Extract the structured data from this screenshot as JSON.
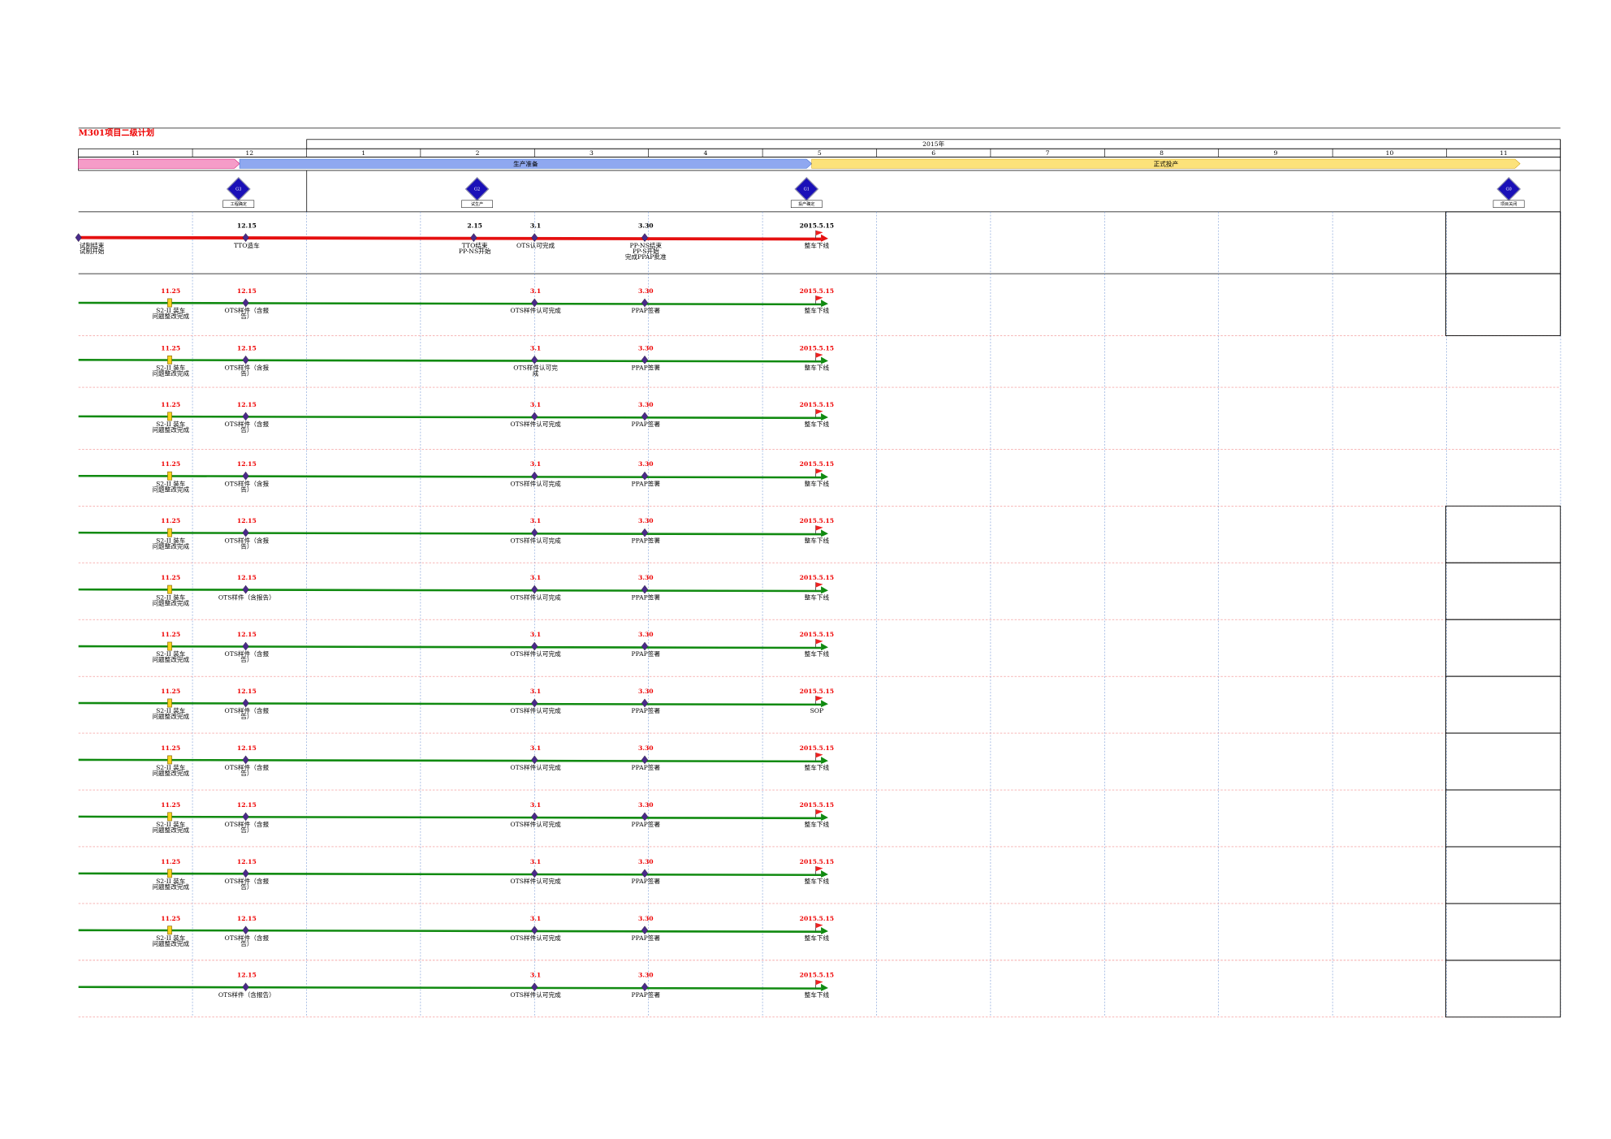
{
  "header": {
    "title": "M301项目二级计划",
    "year": "2015年",
    "months": [
      "11",
      "12",
      "1",
      "2",
      "3",
      "4",
      "5",
      "6",
      "7",
      "8",
      "9",
      "10",
      "11"
    ],
    "phases": [
      "生产准备",
      "正式投产"
    ],
    "gates": [
      {
        "name": "G3",
        "caption": "工程确定"
      },
      {
        "name": "G2",
        "caption": "试生产"
      },
      {
        "name": "G1",
        "caption": "投产确定"
      },
      {
        "name": "G0",
        "caption": "项目关闭"
      }
    ]
  },
  "main_row": {
    "milestones": [
      {
        "date": null,
        "label": [
          "试制结束",
          "试制开始"
        ],
        "marker": "diamond"
      },
      {
        "date": "12.15",
        "label": [
          "TTO造车"
        ],
        "marker": "diamond"
      },
      {
        "date": "2.15",
        "label": [
          "TTO结束",
          "PP-NS开始"
        ],
        "marker": "diamond"
      },
      {
        "date": "3.1",
        "label": [
          "OTS认可完成"
        ],
        "marker": "diamond"
      },
      {
        "date": "3.30",
        "label": [
          "PP-NS结束",
          "PP-S开始",
          "完成PPAP批准"
        ],
        "marker": "diamond"
      },
      {
        "date": "2015.5.15",
        "label": [
          "整车下线"
        ],
        "marker": "flag"
      }
    ]
  },
  "rows": [
    {
      "milestones": [
        {
          "date": "11.25",
          "label": [
            "S2-II 装车",
            "问题整改完成"
          ],
          "marker": "bar"
        },
        {
          "date": "12.15",
          "label": [
            "OTS样件（含报",
            "告）"
          ],
          "marker": "diamond"
        },
        {
          "date": "3.1",
          "label": [
            "OTS样件认可完成"
          ],
          "marker": "diamond"
        },
        {
          "date": "3.30",
          "label": [
            "PPAP签署"
          ],
          "marker": "diamond"
        },
        {
          "date": "2015.5.15",
          "label": [
            "整车下线"
          ],
          "marker": "flag"
        }
      ]
    },
    {
      "milestones": [
        {
          "date": "11.25",
          "label": [
            "S2-II 装车",
            "问题整改完成"
          ],
          "marker": "bar"
        },
        {
          "date": "12.15",
          "label": [
            "OTS样件（含报",
            "告）"
          ],
          "marker": "diamond"
        },
        {
          "date": "3.1",
          "label": [
            "OTS样件认可完",
            "成"
          ],
          "marker": "diamond"
        },
        {
          "date": "3.30",
          "label": [
            "PPAP签署"
          ],
          "marker": "diamond"
        },
        {
          "date": "2015.5.15",
          "label": [
            "整车下线"
          ],
          "marker": "flag"
        }
      ]
    },
    {
      "milestones": [
        {
          "date": "11.25",
          "label": [
            "S2-II 装车",
            "问题整改完成"
          ],
          "marker": "bar"
        },
        {
          "date": "12.15",
          "label": [
            "OTS样件（含报",
            "告）"
          ],
          "marker": "diamond"
        },
        {
          "date": "3.1",
          "label": [
            "OTS样件认可完成"
          ],
          "marker": "diamond"
        },
        {
          "date": "3.30",
          "label": [
            "PPAP签署"
          ],
          "marker": "diamond"
        },
        {
          "date": "2015.5.15",
          "label": [
            "整车下线"
          ],
          "marker": "flag"
        }
      ]
    },
    {
      "milestones": [
        {
          "date": "11.25",
          "label": [
            "S2-II 装车",
            "问题整改完成"
          ],
          "marker": "bar"
        },
        {
          "date": "12.15",
          "label": [
            "OTS样件（含报",
            "告）"
          ],
          "marker": "diamond"
        },
        {
          "date": "3.1",
          "label": [
            "OTS样件认可完成"
          ],
          "marker": "diamond"
        },
        {
          "date": "3.30",
          "label": [
            "PPAP签署"
          ],
          "marker": "diamond"
        },
        {
          "date": "2015.5.15",
          "label": [
            "整车下线"
          ],
          "marker": "flag"
        }
      ]
    },
    {
      "milestones": [
        {
          "date": "11.25",
          "label": [
            "S2-II 装车",
            "问题整改完成"
          ],
          "marker": "bar"
        },
        {
          "date": "12.15",
          "label": [
            "OTS样件（含报",
            "告）"
          ],
          "marker": "diamond"
        },
        {
          "date": "3.1",
          "label": [
            "OTS样件认可完成"
          ],
          "marker": "diamond"
        },
        {
          "date": "3.30",
          "label": [
            "PPAP签署"
          ],
          "marker": "diamond"
        },
        {
          "date": "2015.5.15",
          "label": [
            "整车下线"
          ],
          "marker": "flag"
        }
      ]
    },
    {
      "milestones": [
        {
          "date": "11.25",
          "label": [
            "S2-II 装车",
            "问题整改完成"
          ],
          "marker": "bar"
        },
        {
          "date": "12.15",
          "label": [
            "OTS样件（含报告）"
          ],
          "marker": "diamond"
        },
        {
          "date": "3.1",
          "label": [
            "OTS样件认可完成"
          ],
          "marker": "diamond"
        },
        {
          "date": "3.30",
          "label": [
            "PPAP签署"
          ],
          "marker": "diamond"
        },
        {
          "date": "2015.5.15",
          "label": [
            "整车下线"
          ],
          "marker": "flag"
        }
      ]
    },
    {
      "milestones": [
        {
          "date": "11.25",
          "label": [
            "S2-II 装车",
            "问题整改完成"
          ],
          "marker": "bar"
        },
        {
          "date": "12.15",
          "label": [
            "OTS样件（含报",
            "告）"
          ],
          "marker": "diamond"
        },
        {
          "date": "3.1",
          "label": [
            "OTS样件认可完成"
          ],
          "marker": "diamond"
        },
        {
          "date": "3.30",
          "label": [
            "PPAP签署"
          ],
          "marker": "diamond"
        },
        {
          "date": "2015.5.15",
          "label": [
            "整车下线"
          ],
          "marker": "flag"
        }
      ]
    },
    {
      "milestones": [
        {
          "date": "11.25",
          "label": [
            "S2-II 装车",
            "问题整改完成"
          ],
          "marker": "bar"
        },
        {
          "date": "12.15",
          "label": [
            "OTS样件（含报",
            "告）"
          ],
          "marker": "diamond"
        },
        {
          "date": "3.1",
          "label": [
            "OTS样件认可完成"
          ],
          "marker": "diamond"
        },
        {
          "date": "3.30",
          "label": [
            "PPAP签署"
          ],
          "marker": "diamond"
        },
        {
          "date": "2015.5.15",
          "label": [
            "SOP"
          ],
          "marker": "flag"
        }
      ]
    },
    {
      "milestones": [
        {
          "date": "11.25",
          "label": [
            "S2-II 装车",
            "问题整改完成"
          ],
          "marker": "bar"
        },
        {
          "date": "12.15",
          "label": [
            "OTS样件（含报",
            "告）"
          ],
          "marker": "diamond"
        },
        {
          "date": "3.1",
          "label": [
            "OTS样件认可完成"
          ],
          "marker": "diamond"
        },
        {
          "date": "3.30",
          "label": [
            "PPAP签署"
          ],
          "marker": "diamond"
        },
        {
          "date": "2015.5.15",
          "label": [
            "整车下线"
          ],
          "marker": "flag"
        }
      ]
    },
    {
      "milestones": [
        {
          "date": "11.25",
          "label": [
            "S2-II 装车",
            "问题整改完成"
          ],
          "marker": "bar"
        },
        {
          "date": "12.15",
          "label": [
            "OTS样件（含报",
            "告）"
          ],
          "marker": "diamond"
        },
        {
          "date": "3.1",
          "label": [
            "OTS样件认可完成"
          ],
          "marker": "diamond"
        },
        {
          "date": "3.30",
          "label": [
            "PPAP签署"
          ],
          "marker": "diamond"
        },
        {
          "date": "2015.5.15",
          "label": [
            "整车下线"
          ],
          "marker": "flag"
        }
      ]
    },
    {
      "milestones": [
        {
          "date": "11.25",
          "label": [
            "S2-II 装车",
            "问题整改完成"
          ],
          "marker": "bar"
        },
        {
          "date": "12.15",
          "label": [
            "OTS样件（含报",
            "告）"
          ],
          "marker": "diamond"
        },
        {
          "date": "3.1",
          "label": [
            "OTS样件认可完成"
          ],
          "marker": "diamond"
        },
        {
          "date": "3.30",
          "label": [
            "PPAP签署"
          ],
          "marker": "diamond"
        },
        {
          "date": "2015.5.15",
          "label": [
            "整车下线"
          ],
          "marker": "flag"
        }
      ]
    },
    {
      "milestones": [
        {
          "date": "11.25",
          "label": [
            "S2-II 装车",
            "问题整改完成"
          ],
          "marker": "bar"
        },
        {
          "date": "12.15",
          "label": [
            "OTS样件（含报",
            "告）"
          ],
          "marker": "diamond"
        },
        {
          "date": "3.1",
          "label": [
            "OTS样件认可完成"
          ],
          "marker": "diamond"
        },
        {
          "date": "3.30",
          "label": [
            "PPAP签署"
          ],
          "marker": "diamond"
        },
        {
          "date": "2015.5.15",
          "label": [
            "整车下线"
          ],
          "marker": "flag"
        }
      ]
    },
    {
      "milestones": [
        {
          "date": "12.15",
          "label": [
            "OTS样件（含报告）"
          ],
          "marker": "diamond"
        },
        {
          "date": "3.1",
          "label": [
            "OTS样件认可完成"
          ],
          "marker": "diamond"
        },
        {
          "date": "3.30",
          "label": [
            "PPAP签署"
          ],
          "marker": "diamond"
        },
        {
          "date": "2015.5.15",
          "label": [
            "整车下线"
          ],
          "marker": "flag"
        }
      ]
    }
  ]
}
